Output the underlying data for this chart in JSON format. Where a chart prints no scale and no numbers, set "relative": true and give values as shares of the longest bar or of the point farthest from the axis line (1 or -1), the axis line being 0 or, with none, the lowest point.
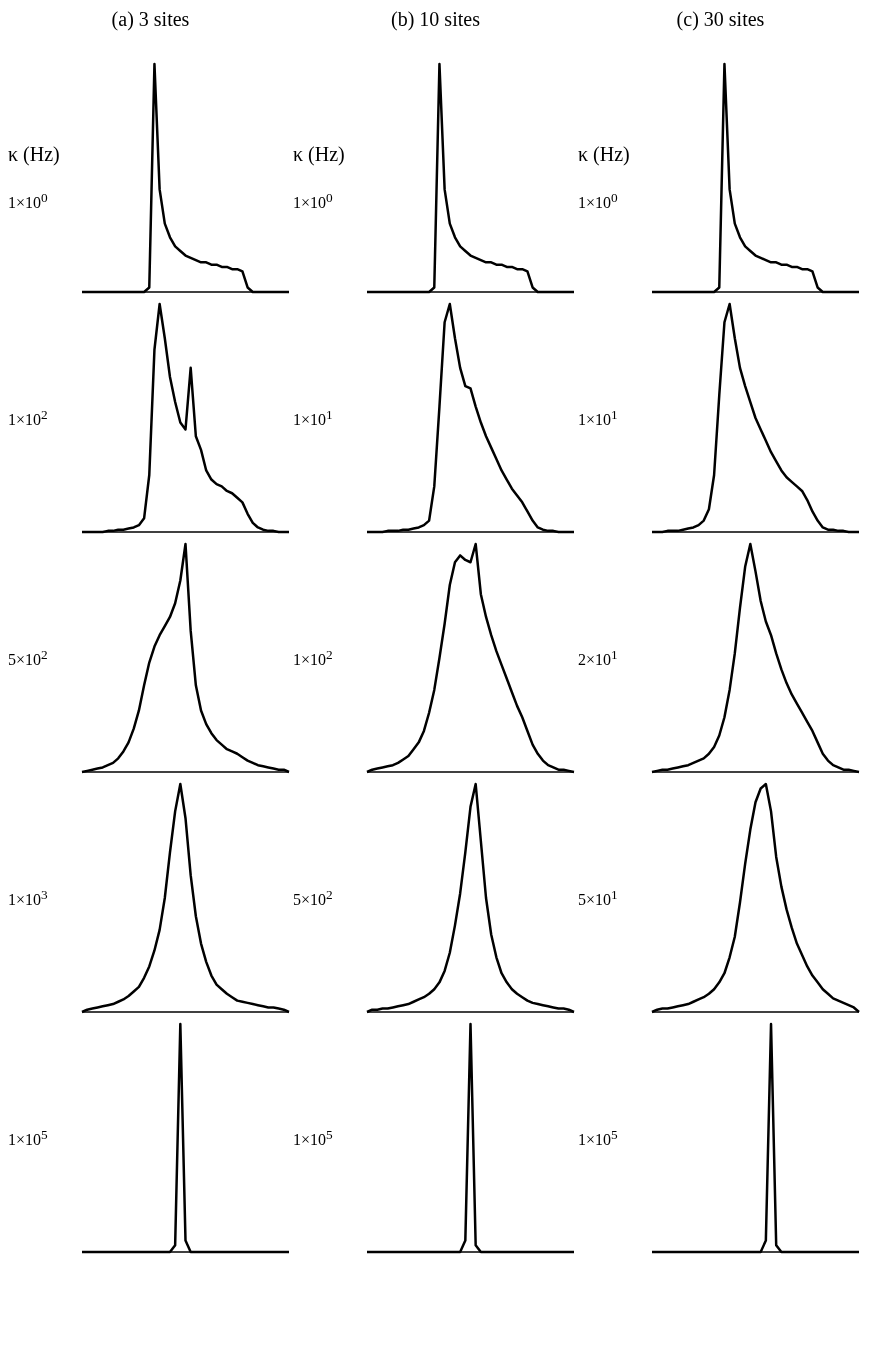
{
  "chart_data": [
    {
      "type": "line",
      "relative": true,
      "title": "(a) 3 sites",
      "annotations": [
        "κ (Hz)",
        "1×10$^{0}$"
      ],
      "categories": [
        null,
        null,
        null,
        null,
        null,
        null,
        null,
        null,
        null,
        null,
        null,
        null,
        null,
        null,
        null,
        null,
        null,
        null,
        null,
        null,
        null,
        null,
        null,
        null,
        null,
        null,
        null,
        null,
        null,
        null,
        null,
        null,
        null,
        null,
        null,
        null,
        null,
        null,
        null,
        null,
        null
      ],
      "series": [
        {
          "color": "#000000",
          "values": [
            0,
            0,
            0,
            0,
            0,
            0,
            0,
            0,
            0,
            0,
            0,
            0,
            0,
            0.02,
            1,
            0.45,
            0.3,
            0.24,
            0.2,
            0.18,
            0.16,
            0.15,
            0.14,
            0.13,
            0.13,
            0.12,
            0.12,
            0.11,
            0.11,
            0.1,
            0.1,
            0.09,
            0.02,
            0,
            0,
            0,
            0,
            0,
            0,
            0,
            0
          ]
        }
      ]
    },
    {
      "type": "line",
      "relative": true,
      "title": "(b) 10 sites",
      "annotations": [
        "κ (Hz)",
        "1×10$^{0}$"
      ],
      "categories": [
        null,
        null,
        null,
        null,
        null,
        null,
        null,
        null,
        null,
        null,
        null,
        null,
        null,
        null,
        null,
        null,
        null,
        null,
        null,
        null,
        null,
        null,
        null,
        null,
        null,
        null,
        null,
        null,
        null,
        null,
        null,
        null,
        null,
        null,
        null,
        null,
        null,
        null,
        null,
        null,
        null
      ],
      "series": [
        {
          "color": "#000000",
          "values": [
            0,
            0,
            0,
            0,
            0,
            0,
            0,
            0,
            0,
            0,
            0,
            0,
            0,
            0.02,
            1,
            0.45,
            0.3,
            0.24,
            0.2,
            0.18,
            0.16,
            0.15,
            0.14,
            0.13,
            0.13,
            0.12,
            0.12,
            0.11,
            0.11,
            0.1,
            0.1,
            0.09,
            0.02,
            0,
            0,
            0,
            0,
            0,
            0,
            0,
            0
          ]
        }
      ]
    },
    {
      "type": "line",
      "relative": true,
      "title": "(c) 30 sites",
      "annotations": [
        "κ (Hz)",
        "1×10$^{0}$"
      ],
      "categories": [
        null,
        null,
        null,
        null,
        null,
        null,
        null,
        null,
        null,
        null,
        null,
        null,
        null,
        null,
        null,
        null,
        null,
        null,
        null,
        null,
        null,
        null,
        null,
        null,
        null,
        null,
        null,
        null,
        null,
        null,
        null,
        null,
        null,
        null,
        null,
        null,
        null,
        null,
        null,
        null,
        null
      ],
      "series": [
        {
          "color": "#000000",
          "values": [
            0,
            0,
            0,
            0,
            0,
            0,
            0,
            0,
            0,
            0,
            0,
            0,
            0,
            0.02,
            1,
            0.45,
            0.3,
            0.24,
            0.2,
            0.18,
            0.16,
            0.15,
            0.14,
            0.13,
            0.13,
            0.12,
            0.12,
            0.11,
            0.11,
            0.1,
            0.1,
            0.09,
            0.02,
            0,
            0,
            0,
            0,
            0,
            0,
            0,
            0
          ]
        }
      ]
    },
    {
      "type": "line",
      "relative": true,
      "annotations": [
        "1×10$^{2}$"
      ],
      "categories": [
        null,
        null,
        null,
        null,
        null,
        null,
        null,
        null,
        null,
        null,
        null,
        null,
        null,
        null,
        null,
        null,
        null,
        null,
        null,
        null,
        null,
        null,
        null,
        null,
        null,
        null,
        null,
        null,
        null,
        null,
        null,
        null,
        null,
        null,
        null,
        null,
        null,
        null,
        null,
        null,
        null
      ],
      "series": [
        {
          "color": "#000000",
          "values": [
            0,
            0,
            0,
            0,
            0,
            0.005,
            0.005,
            0.01,
            0.01,
            0.015,
            0.02,
            0.03,
            0.06,
            0.25,
            0.8,
            1.0,
            0.85,
            0.68,
            0.57,
            0.48,
            0.45,
            0.72,
            0.42,
            0.36,
            0.27,
            0.23,
            0.21,
            0.2,
            0.18,
            0.17,
            0.15,
            0.13,
            0.08,
            0.04,
            0.02,
            0.01,
            0.005,
            0.005,
            0,
            0,
            0
          ]
        }
      ]
    },
    {
      "type": "line",
      "relative": true,
      "annotations": [
        "1×10$^{1}$"
      ],
      "categories": [
        null,
        null,
        null,
        null,
        null,
        null,
        null,
        null,
        null,
        null,
        null,
        null,
        null,
        null,
        null,
        null,
        null,
        null,
        null,
        null,
        null,
        null,
        null,
        null,
        null,
        null,
        null,
        null,
        null,
        null,
        null,
        null,
        null,
        null,
        null,
        null,
        null,
        null,
        null,
        null,
        null
      ],
      "series": [
        {
          "color": "#000000",
          "values": [
            0,
            0,
            0,
            0,
            0.005,
            0.005,
            0.005,
            0.01,
            0.01,
            0.015,
            0.02,
            0.03,
            0.05,
            0.2,
            0.55,
            0.92,
            1.0,
            0.85,
            0.72,
            0.64,
            0.63,
            0.55,
            0.48,
            0.42,
            0.37,
            0.32,
            0.27,
            0.23,
            0.19,
            0.16,
            0.13,
            0.09,
            0.05,
            0.02,
            0.01,
            0.005,
            0.005,
            0,
            0,
            0,
            0
          ]
        }
      ]
    },
    {
      "type": "line",
      "relative": true,
      "annotations": [
        "1×10$^{1}$"
      ],
      "categories": [
        null,
        null,
        null,
        null,
        null,
        null,
        null,
        null,
        null,
        null,
        null,
        null,
        null,
        null,
        null,
        null,
        null,
        null,
        null,
        null,
        null,
        null,
        null,
        null,
        null,
        null,
        null,
        null,
        null,
        null,
        null,
        null,
        null,
        null,
        null,
        null,
        null,
        null,
        null,
        null,
        null
      ],
      "series": [
        {
          "color": "#000000",
          "values": [
            0,
            0,
            0,
            0.005,
            0.005,
            0.005,
            0.01,
            0.015,
            0.02,
            0.03,
            0.05,
            0.1,
            0.25,
            0.6,
            0.92,
            1.0,
            0.85,
            0.72,
            0.64,
            0.57,
            0.5,
            0.45,
            0.4,
            0.35,
            0.31,
            0.27,
            0.24,
            0.22,
            0.2,
            0.18,
            0.14,
            0.09,
            0.05,
            0.02,
            0.01,
            0.01,
            0.005,
            0.005,
            0,
            0,
            0
          ]
        }
      ]
    },
    {
      "type": "line",
      "relative": true,
      "annotations": [
        "5×10$^{2}$"
      ],
      "categories": [
        null,
        null,
        null,
        null,
        null,
        null,
        null,
        null,
        null,
        null,
        null,
        null,
        null,
        null,
        null,
        null,
        null,
        null,
        null,
        null,
        null,
        null,
        null,
        null,
        null,
        null,
        null,
        null,
        null,
        null,
        null,
        null,
        null,
        null,
        null,
        null,
        null,
        null,
        null,
        null,
        null
      ],
      "series": [
        {
          "color": "#000000",
          "values": [
            0,
            0.005,
            0.01,
            0.015,
            0.02,
            0.03,
            0.04,
            0.06,
            0.09,
            0.13,
            0.19,
            0.27,
            0.38,
            0.48,
            0.55,
            0.6,
            0.64,
            0.68,
            0.74,
            0.84,
            1.0,
            0.62,
            0.38,
            0.27,
            0.21,
            0.17,
            0.14,
            0.12,
            0.1,
            0.09,
            0.08,
            0.065,
            0.05,
            0.04,
            0.03,
            0.025,
            0.02,
            0.015,
            0.01,
            0.01,
            0
          ]
        }
      ]
    },
    {
      "type": "line",
      "relative": true,
      "annotations": [
        "1×10$^{2}$"
      ],
      "categories": [
        null,
        null,
        null,
        null,
        null,
        null,
        null,
        null,
        null,
        null,
        null,
        null,
        null,
        null,
        null,
        null,
        null,
        null,
        null,
        null,
        null,
        null,
        null,
        null,
        null,
        null,
        null,
        null,
        null,
        null,
        null,
        null,
        null,
        null,
        null,
        null,
        null,
        null,
        null,
        null,
        null
      ],
      "series": [
        {
          "color": "#000000",
          "values": [
            0,
            0.01,
            0.015,
            0.02,
            0.025,
            0.03,
            0.04,
            0.055,
            0.07,
            0.1,
            0.13,
            0.18,
            0.26,
            0.36,
            0.5,
            0.65,
            0.82,
            0.92,
            0.95,
            0.93,
            0.92,
            1.0,
            0.78,
            0.68,
            0.6,
            0.53,
            0.47,
            0.41,
            0.35,
            0.29,
            0.24,
            0.18,
            0.12,
            0.08,
            0.05,
            0.03,
            0.02,
            0.01,
            0.01,
            0.005,
            0
          ]
        }
      ]
    },
    {
      "type": "line",
      "relative": true,
      "annotations": [
        "2×10$^{1}$"
      ],
      "categories": [
        null,
        null,
        null,
        null,
        null,
        null,
        null,
        null,
        null,
        null,
        null,
        null,
        null,
        null,
        null,
        null,
        null,
        null,
        null,
        null,
        null,
        null,
        null,
        null,
        null,
        null,
        null,
        null,
        null,
        null,
        null,
        null,
        null,
        null,
        null,
        null,
        null,
        null,
        null,
        null,
        null
      ],
      "series": [
        {
          "color": "#000000",
          "values": [
            0,
            0.005,
            0.01,
            0.01,
            0.015,
            0.02,
            0.025,
            0.03,
            0.04,
            0.05,
            0.06,
            0.08,
            0.11,
            0.16,
            0.24,
            0.36,
            0.52,
            0.72,
            0.9,
            1.0,
            0.88,
            0.75,
            0.66,
            0.6,
            0.52,
            0.45,
            0.39,
            0.34,
            0.3,
            0.26,
            0.22,
            0.18,
            0.13,
            0.08,
            0.05,
            0.03,
            0.02,
            0.01,
            0.01,
            0.005,
            0
          ]
        }
      ]
    },
    {
      "type": "line",
      "relative": true,
      "annotations": [
        "1×10$^{3}$"
      ],
      "categories": [
        null,
        null,
        null,
        null,
        null,
        null,
        null,
        null,
        null,
        null,
        null,
        null,
        null,
        null,
        null,
        null,
        null,
        null,
        null,
        null,
        null,
        null,
        null,
        null,
        null,
        null,
        null,
        null,
        null,
        null,
        null,
        null,
        null,
        null,
        null,
        null,
        null,
        null,
        null,
        null,
        null
      ],
      "series": [
        {
          "color": "#000000",
          "values": [
            0,
            0.01,
            0.015,
            0.02,
            0.025,
            0.03,
            0.035,
            0.045,
            0.055,
            0.07,
            0.09,
            0.11,
            0.15,
            0.2,
            0.27,
            0.36,
            0.5,
            0.7,
            0.88,
            1.0,
            0.85,
            0.6,
            0.42,
            0.3,
            0.22,
            0.16,
            0.12,
            0.1,
            0.08,
            0.065,
            0.05,
            0.045,
            0.04,
            0.035,
            0.03,
            0.025,
            0.02,
            0.02,
            0.015,
            0.01,
            0
          ]
        }
      ]
    },
    {
      "type": "line",
      "relative": true,
      "annotations": [
        "5×10$^{2}$"
      ],
      "categories": [
        null,
        null,
        null,
        null,
        null,
        null,
        null,
        null,
        null,
        null,
        null,
        null,
        null,
        null,
        null,
        null,
        null,
        null,
        null,
        null,
        null,
        null,
        null,
        null,
        null,
        null,
        null,
        null,
        null,
        null,
        null,
        null,
        null,
        null,
        null,
        null,
        null,
        null,
        null,
        null,
        null
      ],
      "series": [
        {
          "color": "#000000",
          "values": [
            0,
            0.01,
            0.01,
            0.015,
            0.015,
            0.02,
            0.025,
            0.03,
            0.035,
            0.045,
            0.055,
            0.065,
            0.08,
            0.1,
            0.13,
            0.18,
            0.26,
            0.38,
            0.52,
            0.7,
            0.9,
            1.0,
            0.75,
            0.5,
            0.34,
            0.24,
            0.17,
            0.13,
            0.1,
            0.08,
            0.065,
            0.05,
            0.04,
            0.035,
            0.03,
            0.025,
            0.02,
            0.015,
            0.015,
            0.01,
            0
          ]
        }
      ]
    },
    {
      "type": "line",
      "relative": true,
      "annotations": [
        "5×10$^{1}$"
      ],
      "categories": [
        null,
        null,
        null,
        null,
        null,
        null,
        null,
        null,
        null,
        null,
        null,
        null,
        null,
        null,
        null,
        null,
        null,
        null,
        null,
        null,
        null,
        null,
        null,
        null,
        null,
        null,
        null,
        null,
        null,
        null,
        null,
        null,
        null,
        null,
        null,
        null,
        null,
        null,
        null,
        null,
        null
      ],
      "series": [
        {
          "color": "#000000",
          "values": [
            0,
            0.01,
            0.015,
            0.015,
            0.02,
            0.025,
            0.03,
            0.035,
            0.045,
            0.055,
            0.065,
            0.08,
            0.1,
            0.13,
            0.17,
            0.24,
            0.33,
            0.48,
            0.65,
            0.8,
            0.92,
            0.98,
            1.0,
            0.88,
            0.68,
            0.55,
            0.45,
            0.37,
            0.3,
            0.25,
            0.2,
            0.16,
            0.13,
            0.1,
            0.08,
            0.06,
            0.05,
            0.04,
            0.03,
            0.02,
            0
          ]
        }
      ]
    },
    {
      "type": "line",
      "relative": true,
      "annotations": [
        "1×10$^{5}$"
      ],
      "categories": [
        null,
        null,
        null,
        null,
        null,
        null,
        null,
        null,
        null,
        null,
        null,
        null,
        null,
        null,
        null,
        null,
        null,
        null,
        null,
        null,
        null,
        null,
        null,
        null,
        null,
        null,
        null,
        null,
        null,
        null,
        null,
        null,
        null,
        null,
        null,
        null,
        null,
        null,
        null,
        null,
        null
      ],
      "series": [
        {
          "color": "#000000",
          "values": [
            0,
            0,
            0,
            0,
            0,
            0,
            0,
            0,
            0,
            0,
            0,
            0,
            0,
            0,
            0,
            0,
            0,
            0,
            0.03,
            1,
            0.05,
            0,
            0,
            0,
            0,
            0,
            0,
            0,
            0,
            0,
            0,
            0,
            0,
            0,
            0,
            0,
            0,
            0,
            0,
            0,
            0
          ]
        }
      ]
    },
    {
      "type": "line",
      "relative": true,
      "annotations": [
        "1×10$^{5}$"
      ],
      "categories": [
        null,
        null,
        null,
        null,
        null,
        null,
        null,
        null,
        null,
        null,
        null,
        null,
        null,
        null,
        null,
        null,
        null,
        null,
        null,
        null,
        null,
        null,
        null,
        null,
        null,
        null,
        null,
        null,
        null,
        null,
        null,
        null,
        null,
        null,
        null,
        null,
        null,
        null,
        null,
        null,
        null
      ],
      "series": [
        {
          "color": "#000000",
          "values": [
            0,
            0,
            0,
            0,
            0,
            0,
            0,
            0,
            0,
            0,
            0,
            0,
            0,
            0,
            0,
            0,
            0,
            0,
            0,
            0.05,
            1,
            0.03,
            0,
            0,
            0,
            0,
            0,
            0,
            0,
            0,
            0,
            0,
            0,
            0,
            0,
            0,
            0,
            0,
            0,
            0,
            0
          ]
        }
      ]
    },
    {
      "type": "line",
      "relative": true,
      "annotations": [
        "1×10$^{5}$"
      ],
      "categories": [
        null,
        null,
        null,
        null,
        null,
        null,
        null,
        null,
        null,
        null,
        null,
        null,
        null,
        null,
        null,
        null,
        null,
        null,
        null,
        null,
        null,
        null,
        null,
        null,
        null,
        null,
        null,
        null,
        null,
        null,
        null,
        null,
        null,
        null,
        null,
        null,
        null,
        null,
        null,
        null,
        null
      ],
      "series": [
        {
          "color": "#000000",
          "values": [
            0,
            0,
            0,
            0,
            0,
            0,
            0,
            0,
            0,
            0,
            0,
            0,
            0,
            0,
            0,
            0,
            0,
            0,
            0,
            0,
            0,
            0,
            0.05,
            1,
            0.03,
            0,
            0,
            0,
            0,
            0,
            0,
            0,
            0,
            0,
            0,
            0,
            0,
            0,
            0,
            0,
            0
          ]
        }
      ]
    }
  ]
}
